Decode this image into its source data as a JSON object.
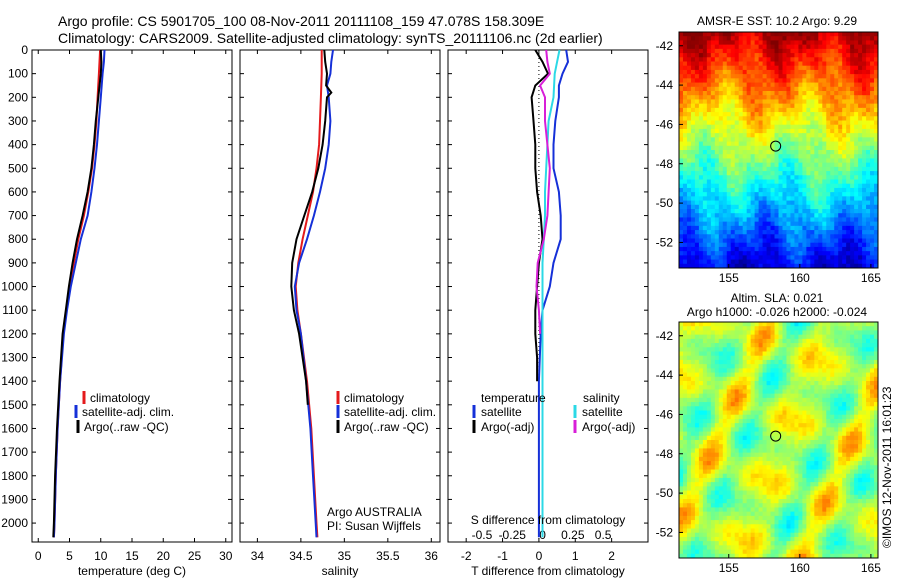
{
  "header": {
    "line1": "Argo profile: CS 5901705_100 08-Nov-2011 20111108_159 47.078S 158.309E",
    "line2": "Climatology: CARS2009. Satellite-adjusted climatology: synTS_20111106.nc (2d earlier)"
  },
  "colors": {
    "climatology": "#e41a1c",
    "satellite": "#1530d8",
    "argo": "#000000",
    "satellite_s": "#2bd9e6",
    "argo_s": "#d81fd8"
  },
  "chart_data": [
    {
      "id": "temperature",
      "type": "line",
      "xlabel": "temperature (deg C)",
      "ylabel": "",
      "xlim": [
        -1,
        31
      ],
      "ylim": [
        2080,
        0
      ],
      "xticks": [
        0,
        5,
        10,
        15,
        20,
        25,
        30
      ],
      "yticks": [
        0,
        100,
        200,
        300,
        400,
        500,
        600,
        700,
        800,
        900,
        1000,
        1100,
        1200,
        1300,
        1400,
        1500,
        1600,
        1700,
        1800,
        1900,
        2000
      ],
      "legend": {
        "placement": "bottom-center",
        "entries": [
          "climatology",
          "satellite-adj. clim.",
          "Argo(..raw -QC)"
        ]
      },
      "series": [
        {
          "name": "climatology",
          "color": "#e41a1c",
          "y": [
            0,
            50,
            100,
            200,
            300,
            400,
            500,
            600,
            700,
            800,
            900,
            1000,
            1100,
            1200,
            1400,
            1600,
            1800,
            2000,
            2060
          ],
          "x": [
            9.9,
            9.8,
            9.7,
            9.5,
            9.3,
            9.0,
            8.6,
            8.0,
            7.3,
            6.4,
            5.7,
            5.0,
            4.5,
            4.0,
            3.5,
            3.1,
            2.8,
            2.6,
            2.5
          ]
        },
        {
          "name": "satellite-adj. clim.",
          "color": "#1530d8",
          "y": [
            0,
            50,
            100,
            200,
            300,
            400,
            500,
            600,
            700,
            800,
            900,
            1000,
            1100,
            1200,
            1400,
            1600,
            1800,
            2000,
            2060
          ],
          "x": [
            10.6,
            10.5,
            10.3,
            10.0,
            9.7,
            9.4,
            9.0,
            8.5,
            7.9,
            6.8,
            6.0,
            5.2,
            4.6,
            4.1,
            3.5,
            3.1,
            2.8,
            2.6,
            2.5
          ]
        },
        {
          "name": "Argo(..raw -QC)",
          "color": "#000000",
          "y": [
            0,
            50,
            100,
            200,
            300,
            400,
            500,
            600,
            700,
            800,
            900,
            1000,
            1100,
            1200,
            1400,
            1600,
            1800,
            2000,
            2060
          ],
          "x": [
            10.0,
            10.1,
            10.0,
            9.6,
            9.2,
            8.9,
            8.5,
            7.9,
            7.1,
            6.2,
            5.5,
            4.9,
            4.4,
            3.9,
            3.4,
            3.0,
            2.7,
            2.5,
            2.4
          ]
        }
      ]
    },
    {
      "id": "salinity",
      "type": "line",
      "xlabel": "salinity",
      "ylabel": "",
      "xlim": [
        33.8,
        36.1
      ],
      "ylim": [
        2080,
        0
      ],
      "xticks": [
        34,
        34.5,
        35,
        35.5,
        36
      ],
      "legend": {
        "placement": "bottom-center",
        "entries": [
          "climatology",
          "satellite-adj. clim.",
          "Argo(..raw -QC)"
        ]
      },
      "annotations": [
        "Argo AUSTRALIA",
        "PI: Susan Wijffels"
      ],
      "series": [
        {
          "name": "climatology",
          "color": "#e41a1c",
          "y": [
            0,
            100,
            200,
            300,
            400,
            500,
            600,
            700,
            800,
            900,
            1000,
            1100,
            1200,
            1400,
            1600,
            1800,
            2000,
            2060
          ],
          "x": [
            34.74,
            34.74,
            34.73,
            34.72,
            34.71,
            34.68,
            34.64,
            34.58,
            34.52,
            34.47,
            34.44,
            34.46,
            34.5,
            34.57,
            34.62,
            34.65,
            34.68,
            34.69
          ]
        },
        {
          "name": "satellite-adj. clim.",
          "color": "#1530d8",
          "y": [
            0,
            50,
            100,
            150,
            200,
            300,
            400,
            500,
            600,
            700,
            800,
            900,
            1000,
            1100,
            1200,
            1400,
            1600,
            1800,
            2000,
            2060
          ],
          "x": [
            34.87,
            34.85,
            34.84,
            34.8,
            34.82,
            34.84,
            34.82,
            34.78,
            34.72,
            34.65,
            34.57,
            34.48,
            34.43,
            34.45,
            34.5,
            34.56,
            34.61,
            34.64,
            34.67,
            34.68
          ]
        },
        {
          "name": "Argo(..raw -QC)",
          "color": "#000000",
          "y": [
            0,
            50,
            100,
            150,
            180,
            200,
            300,
            400,
            500,
            600,
            700,
            800,
            900,
            1000,
            1100,
            1200,
            1400,
            1500
          ],
          "x": [
            34.77,
            34.78,
            34.8,
            34.79,
            34.85,
            34.8,
            34.78,
            34.75,
            34.7,
            34.63,
            34.54,
            34.45,
            34.4,
            34.39,
            34.42,
            34.48,
            34.56,
            34.58
          ]
        }
      ]
    },
    {
      "id": "difference",
      "type": "line",
      "xlabel": "T difference from climatology",
      "xlabel_top": "S difference from climatology",
      "xlim": [
        -2.5,
        3
      ],
      "xlim_s": [
        -0.78,
        0.87
      ],
      "ylim": [
        2080,
        0
      ],
      "xticks": [
        -2,
        -1,
        0,
        1,
        2
      ],
      "xticks_s": [
        -0.5,
        -0.25,
        0,
        0.25,
        0.5
      ],
      "legend": {
        "placement": "bottom-center",
        "entries": [
          "temperature",
          "satellite",
          "Argo(-adj)",
          "salinity",
          "satellite",
          "Argo(-adj)"
        ]
      },
      "series": [
        {
          "name": "satellite",
          "quantity": "temperature",
          "color": "#1530d8",
          "y": [
            0,
            50,
            100,
            150,
            200,
            300,
            400,
            500,
            600,
            700,
            800,
            900,
            1000,
            1100,
            1200,
            1400,
            1600,
            1800,
            2000,
            2060
          ],
          "x": [
            0.75,
            0.8,
            0.65,
            0.55,
            0.55,
            0.45,
            0.4,
            0.4,
            0.55,
            0.6,
            0.6,
            0.4,
            0.3,
            0.1,
            0.05,
            0,
            0,
            0,
            0,
            0
          ]
        },
        {
          "name": "Argo(-adj)",
          "quantity": "temperature",
          "color": "#000000",
          "y": [
            0,
            50,
            100,
            150,
            200,
            300,
            400,
            500,
            600,
            700,
            800,
            900,
            1000,
            1100,
            1200,
            1300,
            1400
          ],
          "x": [
            -0.1,
            0.1,
            0.25,
            -0.1,
            -0.2,
            -0.15,
            -0.1,
            -0.1,
            -0.05,
            0.05,
            0.1,
            0,
            -0.05,
            -0.1,
            -0.1,
            -0.05,
            -0.05
          ]
        },
        {
          "name": "satellite",
          "quantity": "salinity",
          "color": "#2bd9e6",
          "y": [
            0,
            50,
            100,
            200,
            300,
            400,
            500,
            600,
            700,
            800,
            900,
            1000,
            1200,
            1400,
            1600,
            1800,
            2000,
            2060
          ],
          "x": [
            0.14,
            0.12,
            0.1,
            0.09,
            0.05,
            0.04,
            0.03,
            0.02,
            0.02,
            0.01,
            0.0,
            0.0,
            0,
            0,
            0,
            0,
            0,
            0
          ]
        },
        {
          "name": "Argo(-adj)",
          "quantity": "salinity",
          "color": "#d81fd8",
          "y": [
            0,
            50,
            100,
            150,
            200,
            300,
            400,
            500,
            600,
            700,
            800,
            900,
            1000,
            1100,
            1200
          ],
          "x": [
            0.03,
            0.04,
            0.06,
            -0.02,
            0.02,
            0.02,
            0.04,
            0.06,
            0.05,
            0.04,
            0.01,
            -0.04,
            -0.05,
            -0.03,
            -0.02
          ]
        }
      ]
    },
    {
      "id": "sst-map",
      "type": "heatmap",
      "title": "AMSR-E SST: 10.2 Argo: 9.29",
      "xlim": [
        151.5,
        165.5
      ],
      "ylim": [
        -53.3,
        -41.3
      ],
      "xticks": [
        155,
        160,
        165
      ],
      "yticks": [
        -42,
        -44,
        -46,
        -48,
        -50,
        -52
      ],
      "marker": {
        "lon": 158.3,
        "lat": -47.1
      }
    },
    {
      "id": "sla-map",
      "type": "heatmap",
      "title": "Altim. SLA: 0.021",
      "subtitle": "Argo h1000: -0.026 h2000: -0.024",
      "xlim": [
        151.5,
        165.5
      ],
      "ylim": [
        -53.3,
        -41.3
      ],
      "xticks": [
        155,
        160,
        165
      ],
      "yticks": [
        -42,
        -44,
        -46,
        -48,
        -50,
        -52
      ],
      "marker": {
        "lon": 158.3,
        "lat": -47.1
      }
    }
  ],
  "footer": {
    "credit": "©IMOS 12-Nov-2011 16:01:23"
  }
}
